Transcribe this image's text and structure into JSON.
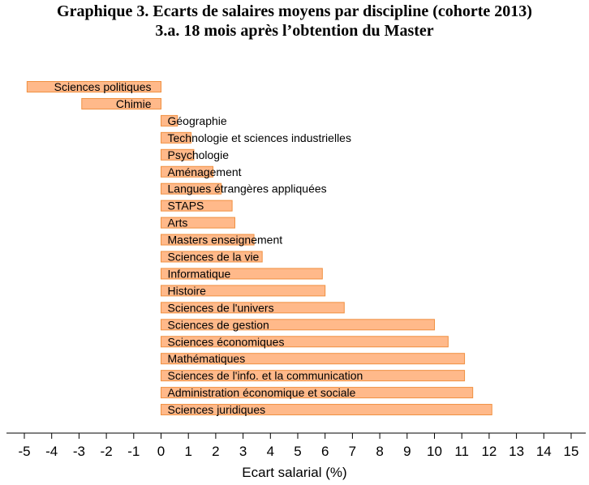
{
  "chart_data": {
    "type": "bar",
    "orientation": "horizontal",
    "title": "Graphique 3. Ecarts de salaires moyens par discipline (cohorte 2013)",
    "subtitle": "3.a. 18 mois après l’obtention du Master",
    "xlabel": "Ecart salarial (%)",
    "ylabel": "",
    "xlim": [
      -5,
      15
    ],
    "xticks": [
      -5,
      -4,
      -3,
      -2,
      -1,
      0,
      1,
      2,
      3,
      4,
      5,
      6,
      7,
      8,
      9,
      10,
      11,
      12,
      13,
      14,
      15
    ],
    "grid": false,
    "bar_color": "#FFB98A",
    "bar_edge_color": "#F09040",
    "categories": [
      "Sciences politiques",
      "Chimie",
      "Géographie",
      "Technologie et sciences industrielles",
      "Psychologie",
      "Aménagement",
      "Langues étrangères appliquées",
      "STAPS",
      "Arts",
      "Masters enseignement",
      "Sciences de la vie",
      "Informatique",
      "Histoire",
      "Sciences de l'univers",
      "Sciences de gestion",
      "Sciences économiques",
      "Mathématiques",
      "Sciences de l'info. et la communication",
      "Administration économique et sociale",
      "Sciences juridiques"
    ],
    "values": [
      -4.9,
      -2.9,
      0.6,
      1.1,
      1.2,
      1.9,
      2.2,
      2.6,
      2.7,
      3.4,
      3.7,
      5.9,
      6.0,
      6.7,
      10.0,
      10.5,
      11.1,
      11.1,
      11.4,
      12.1
    ]
  }
}
